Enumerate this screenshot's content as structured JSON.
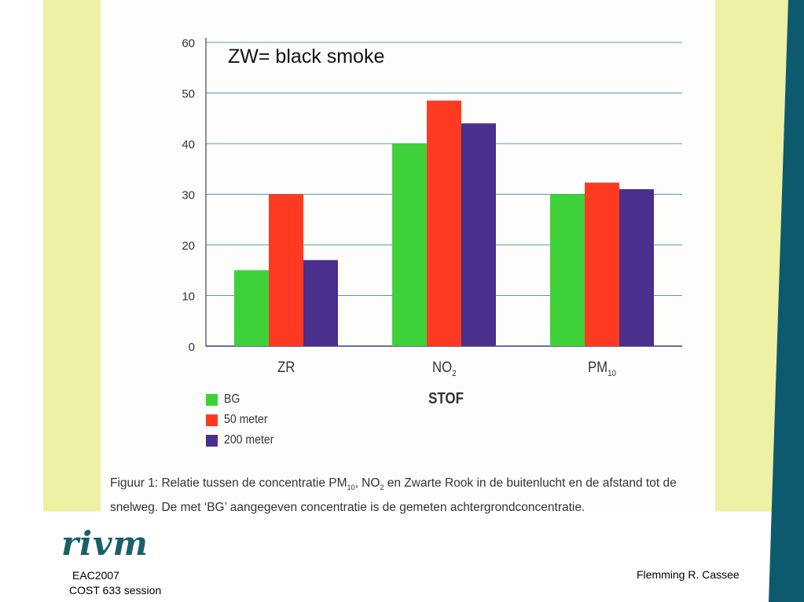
{
  "annotation": "ZW= black smoke",
  "chart_data": {
    "type": "bar",
    "categories": [
      "ZR",
      "NO2",
      "PM10"
    ],
    "categories_display": [
      {
        "base": "ZR",
        "sub": ""
      },
      {
        "base": "NO",
        "sub": "2"
      },
      {
        "base": "PM",
        "sub": "10"
      }
    ],
    "series": [
      {
        "name": "BG",
        "values": [
          15,
          40,
          30
        ],
        "color": "#3fd13a"
      },
      {
        "name": "50 meter",
        "values": [
          30,
          48.5,
          32.3
        ],
        "color": "#ff3a22"
      },
      {
        "name": "200 meter",
        "values": [
          17,
          44,
          31
        ],
        "color": "#4a2f8c"
      }
    ],
    "xlabel": "STOF",
    "ylim": [
      0,
      60
    ],
    "yticks": [
      "0",
      "10",
      "20",
      "30",
      "40",
      "50",
      "60"
    ],
    "grid": true,
    "legend": "bottom-left"
  },
  "caption": {
    "line1_a": "Figuur 1: Relatie tussen de concentratie PM",
    "line1_sub1": "10",
    "line1_b": ", NO",
    "line1_sub2": "2",
    "line1_c": " en Zwarte Rook in de buitenlucht en de afstand tot de",
    "line2": "snelweg. De met ‘BG’ aangegeven concentratie is de gemeten achtergrondconcentratie."
  },
  "logo_text": "rivm",
  "footer": {
    "left_line1": "EAC2007",
    "left_line2": "COST 633 session",
    "right": "Flemming R. Cassee"
  },
  "theme": {
    "band_color": "#eef0a4",
    "stripe_color": "#0d5a6e"
  }
}
